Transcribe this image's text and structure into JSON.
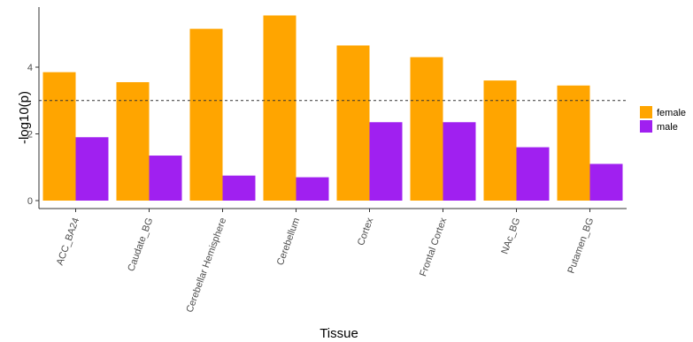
{
  "chart_data": {
    "type": "bar",
    "xlabel": "Tissue",
    "ylabel": "-log10(p)",
    "categories": [
      "ACC_BA24",
      "Caudate_BG",
      "Cerebellar Hemisphere",
      "Cerebellum",
      "Cortex",
      "Frontal Cortex",
      "NAc_BG",
      "Putamen_BG"
    ],
    "series": [
      {
        "name": "female",
        "color": "#FFA500",
        "values": [
          3.85,
          3.55,
          5.15,
          5.55,
          4.65,
          4.3,
          3.6,
          3.45
        ]
      },
      {
        "name": "male",
        "color": "#A020F0",
        "values": [
          1.9,
          1.35,
          0.75,
          0.7,
          2.35,
          2.35,
          1.6,
          1.1
        ]
      }
    ],
    "ylim": [
      0,
      5.8
    ],
    "yticks": [
      0,
      2,
      4
    ],
    "reference_line": {
      "y": 3,
      "style": "dashed"
    },
    "legend_position": "right",
    "grid": false
  }
}
